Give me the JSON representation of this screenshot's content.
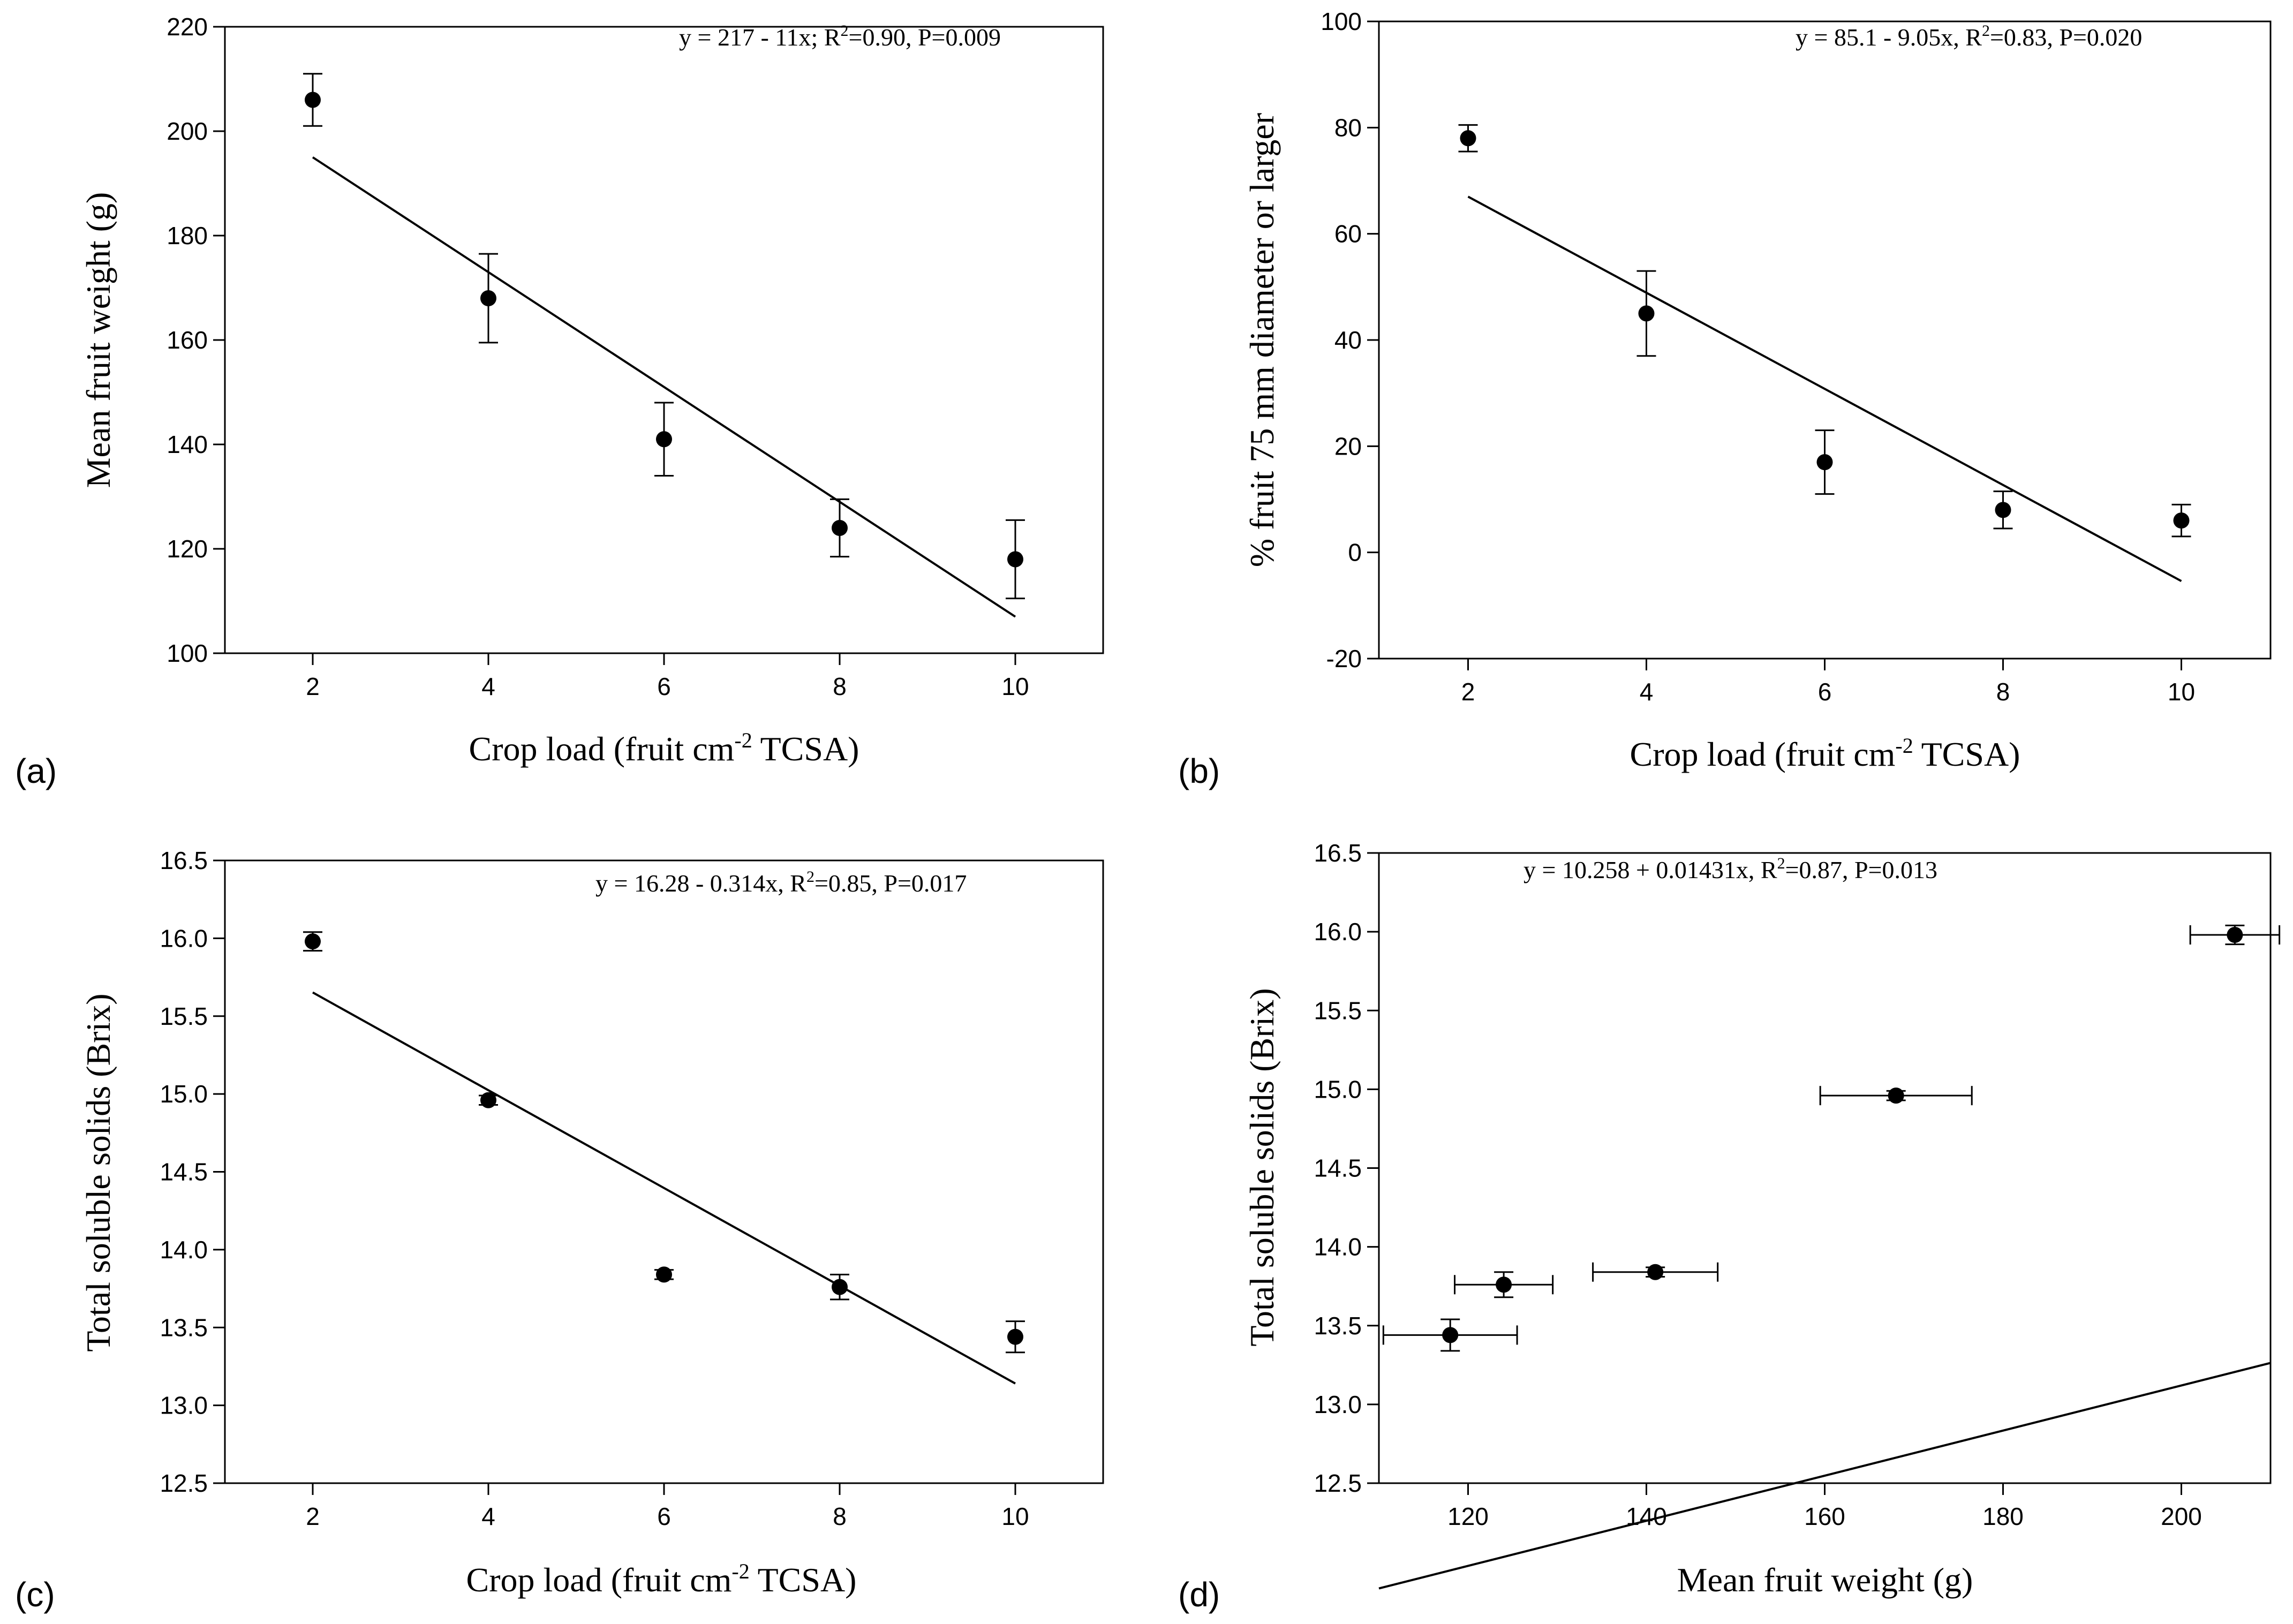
{
  "chart_data": [
    {
      "panel": "(a)",
      "type": "scatter",
      "xlabel": "Crop load (fruit cm",
      "xlabel_sup": "-2",
      "xlabel_tail": " TCSA)",
      "ylabel": "Mean fruit weight (g)",
      "xlim": [
        1,
        11
      ],
      "ylim": [
        100,
        220
      ],
      "xticks": [
        2,
        4,
        6,
        8,
        10
      ],
      "yticks": [
        100,
        120,
        140,
        160,
        180,
        200,
        220
      ],
      "ytick_labels": [
        "100",
        "120",
        "140",
        "160",
        "180",
        "200",
        "220"
      ],
      "annotation": {
        "pre": "y = 217 - 11x; R",
        "sup": "2",
        "post": "=0.90, P=0.009"
      },
      "points": [
        {
          "x": 2,
          "y": 206,
          "yerr": 5
        },
        {
          "x": 4,
          "y": 168,
          "yerr": 8.5
        },
        {
          "x": 6,
          "y": 141,
          "yerr": 7
        },
        {
          "x": 8,
          "y": 124,
          "yerr": 5.5
        },
        {
          "x": 10,
          "y": 118,
          "yerr": 7.5
        }
      ],
      "fit": {
        "intercept": 217,
        "slope": -11,
        "x_range": [
          2,
          10
        ]
      }
    },
    {
      "panel": "(b)",
      "type": "scatter",
      "xlabel": "Crop load (fruit cm",
      "xlabel_sup": "-2",
      "xlabel_tail": " TCSA)",
      "ylabel": "% fruit 75 mm diameter or larger",
      "xlim": [
        1,
        11
      ],
      "ylim": [
        -20,
        100
      ],
      "xticks": [
        2,
        4,
        6,
        8,
        10
      ],
      "yticks": [
        -20,
        0,
        20,
        40,
        60,
        80,
        100
      ],
      "ytick_labels": [
        "-20",
        "0",
        "20",
        "40",
        "60",
        "80",
        "100"
      ],
      "annotation": {
        "pre": "y = 85.1 - 9.05x, R",
        "sup": "2",
        "post": "=0.83, P=0.020"
      },
      "points": [
        {
          "x": 2,
          "y": 78,
          "yerr": 2.5
        },
        {
          "x": 4,
          "y": 45,
          "yerr": 8
        },
        {
          "x": 6,
          "y": 17,
          "yerr": 6
        },
        {
          "x": 8,
          "y": 8,
          "yerr": 3.5
        },
        {
          "x": 10,
          "y": 6,
          "yerr": 3
        }
      ],
      "fit": {
        "intercept": 85.1,
        "slope": -9.05,
        "x_range": [
          2,
          10
        ]
      }
    },
    {
      "panel": "(c)",
      "type": "scatter",
      "xlabel": "Crop load (fruit cm",
      "xlabel_sup": "-2",
      "xlabel_tail": " TCSA)",
      "ylabel": "Total soluble solids (Brix)",
      "xlim": [
        1,
        11
      ],
      "ylim": [
        12.5,
        16.5
      ],
      "xticks": [
        2,
        4,
        6,
        8,
        10
      ],
      "yticks": [
        12.5,
        13.0,
        13.5,
        14.0,
        14.5,
        15.0,
        15.5,
        16.0,
        16.5
      ],
      "ytick_labels": [
        "12.5",
        "13.0",
        "13.5",
        "14.0",
        "14.5",
        "15.0",
        "15.5",
        "16.0",
        "16.5"
      ],
      "annotation": {
        "pre": "y = 16.28 - 0.314x, R",
        "sup": "2",
        "post": "=0.85, P=0.017"
      },
      "points": [
        {
          "x": 2,
          "y": 15.98,
          "yerr": 0.06
        },
        {
          "x": 4,
          "y": 14.96,
          "yerr": 0.03
        },
        {
          "x": 6,
          "y": 13.84,
          "yerr": 0.03
        },
        {
          "x": 8,
          "y": 13.76,
          "yerr": 0.08
        },
        {
          "x": 10,
          "y": 13.44,
          "yerr": 0.1
        }
      ],
      "fit": {
        "intercept": 16.28,
        "slope": -0.314,
        "x_range": [
          2,
          10
        ]
      }
    },
    {
      "panel": "(d)",
      "type": "scatter",
      "xlabel": "Mean fruit weight (g)",
      "xlabel_sup": "",
      "xlabel_tail": "",
      "ylabel": "Total soluble solids (Brix)",
      "xlim": [
        110,
        210
      ],
      "ylim": [
        12.5,
        16.5
      ],
      "xticks": [
        120,
        140,
        160,
        180,
        200
      ],
      "yticks": [
        12.5,
        13.0,
        13.5,
        14.0,
        14.5,
        15.0,
        15.5,
        16.0,
        16.5
      ],
      "ytick_labels": [
        "12.5",
        "13.0",
        "13.5",
        "14.0",
        "14.5",
        "15.0",
        "15.5",
        "16.0",
        "16.5"
      ],
      "annotation": {
        "pre": "y = 10.258 + 0.01431x, R",
        "sup": "2",
        "post": "=0.87, P=0.013"
      },
      "points": [
        {
          "x": 118,
          "y": 13.44,
          "yerr": 0.1,
          "xerr": 7.5
        },
        {
          "x": 124,
          "y": 13.76,
          "yerr": 0.08,
          "xerr": 5.5
        },
        {
          "x": 141,
          "y": 13.84,
          "yerr": 0.03,
          "xerr": 7
        },
        {
          "x": 168,
          "y": 14.96,
          "yerr": 0.03,
          "xerr": 8.5
        },
        {
          "x": 206,
          "y": 15.98,
          "yerr": 0.06,
          "xerr": 5
        }
      ],
      "fit": {
        "intercept": 10.258,
        "slope": 0.01431,
        "x_range": [
          110,
          210
        ]
      }
    }
  ]
}
